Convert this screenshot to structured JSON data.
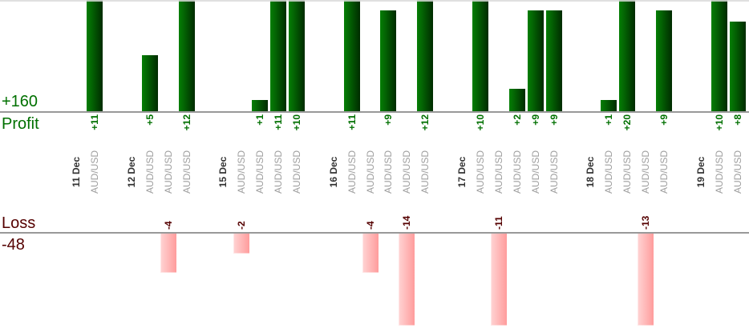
{
  "chart": {
    "profit_axis": {
      "total": "+160",
      "label": "Profit"
    },
    "loss_axis": {
      "label": "Loss",
      "total": "-48"
    }
  },
  "chart_data": {
    "type": "bar",
    "orientation": "vertical",
    "positive_axis_label": "Profit",
    "positive_axis_total_label": "+160",
    "negative_axis_label": "Loss",
    "negative_axis_total_label": "-48",
    "value_label_format": "signed integer, rotated 90deg",
    "groups": [
      {
        "date": "11 Dec",
        "trades": [
          {
            "symbol": "AUD/USD",
            "value": 11
          }
        ]
      },
      {
        "date": "12 Dec",
        "trades": [
          {
            "symbol": "AUD/USD",
            "value": 5
          },
          {
            "symbol": "AUD/USD",
            "value": -4
          },
          {
            "symbol": "AUD/USD",
            "value": 12
          }
        ]
      },
      {
        "date": "15 Dec",
        "trades": [
          {
            "symbol": "AUD/USD",
            "value": -2
          },
          {
            "symbol": "AUD/USD",
            "value": 1
          },
          {
            "symbol": "AUD/USD",
            "value": 11
          },
          {
            "symbol": "AUD/USD",
            "value": 10
          }
        ]
      },
      {
        "date": "16 Dec",
        "trades": [
          {
            "symbol": "AUD/USD",
            "value": 11
          },
          {
            "symbol": "AUD/USD",
            "value": -4
          },
          {
            "symbol": "AUD/USD",
            "value": 9
          },
          {
            "symbol": "AUD/USD",
            "value": -14
          },
          {
            "symbol": "AUD/USD",
            "value": 12
          }
        ]
      },
      {
        "date": "17 Dec",
        "trades": [
          {
            "symbol": "AUD/USD",
            "value": 10
          },
          {
            "symbol": "AUD/USD",
            "value": -11
          },
          {
            "symbol": "AUD/USD",
            "value": 2
          },
          {
            "symbol": "AUD/USD",
            "value": 9
          },
          {
            "symbol": "AUD/USD",
            "value": 9
          }
        ]
      },
      {
        "date": "18 Dec",
        "trades": [
          {
            "symbol": "AUD/USD",
            "value": 1
          },
          {
            "symbol": "AUD/USD",
            "value": 20
          },
          {
            "symbol": "AUD/USD",
            "value": -13
          },
          {
            "symbol": "AUD/USD",
            "value": 9
          }
        ]
      },
      {
        "date": "19 Dec",
        "trades": [
          {
            "symbol": "AUD/USD",
            "value": 10
          },
          {
            "symbol": "AUD/USD",
            "value": 8
          }
        ]
      }
    ],
    "colors": {
      "profit_bar_light": "#057f05",
      "profit_bar_dark": "#002b00",
      "loss_bar_light": "#ffd4d4",
      "loss_bar_dark": "#ff9c9c",
      "profit_text": "#007000",
      "loss_text": "#550000",
      "date_text": "#333333",
      "symbol_text": "#9e9e9e",
      "axis_line": "#999999",
      "top_gridline": "#dbdbdb"
    },
    "layout_hints": {
      "profit_bars_clipped_at_top": true,
      "loss_bars_clipped_at_bottom": true
    }
  }
}
